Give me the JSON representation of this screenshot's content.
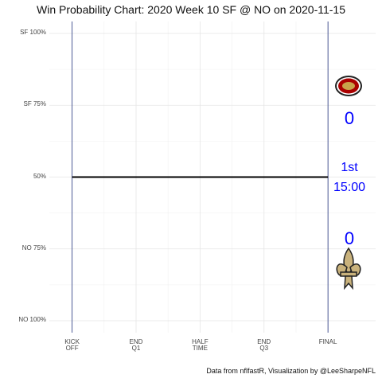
{
  "chart_data": {
    "type": "line",
    "title": "Win Probability Chart: 2020 Week 10 SF @ NO on 2020-11-15",
    "caption": "Data from nflfastR, Visualization by @LeeSharpeNFL",
    "x": [
      0,
      3600
    ],
    "series": [
      {
        "name": "SF",
        "color": "#000000",
        "values": [
          50,
          50
        ]
      }
    ],
    "xlim": [
      -320,
      4270
    ],
    "xticks": [
      {
        "value": 0,
        "label": "KICK\nOFF"
      },
      {
        "value": 900,
        "label": "END\nQ1"
      },
      {
        "value": 1800,
        "label": "HALF\nTIME"
      },
      {
        "value": 2700,
        "label": "END\nQ3"
      },
      {
        "value": 3600,
        "label": "FINAL"
      }
    ],
    "ylim": [
      0,
      100
    ],
    "yticks": [
      {
        "value": 100,
        "label": "SF 100%"
      },
      {
        "value": 75,
        "label": "SF 75%"
      },
      {
        "value": 50,
        "label": "50%"
      },
      {
        "value": 25,
        "label": "NO 75%"
      },
      {
        "value": 0,
        "label": "NO 100%"
      }
    ],
    "grid": true,
    "scoreboard": {
      "color": "#0000ff",
      "sf_score": 0,
      "quarter": "1st",
      "clock": "15:00",
      "no_score": 0
    }
  }
}
